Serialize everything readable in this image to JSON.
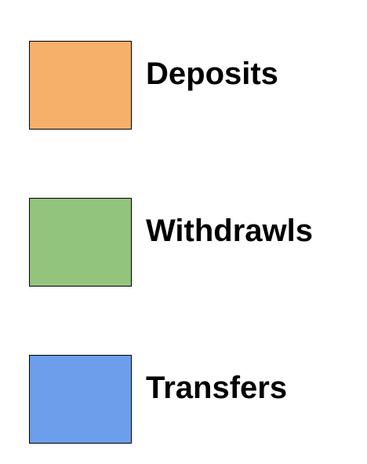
{
  "legend": {
    "items": [
      {
        "label": "Deposits",
        "color": "#f6b06a"
      },
      {
        "label": "Withdrawls",
        "color": "#93c47d"
      },
      {
        "label": "Transfers",
        "color": "#6d9eeb"
      }
    ]
  }
}
